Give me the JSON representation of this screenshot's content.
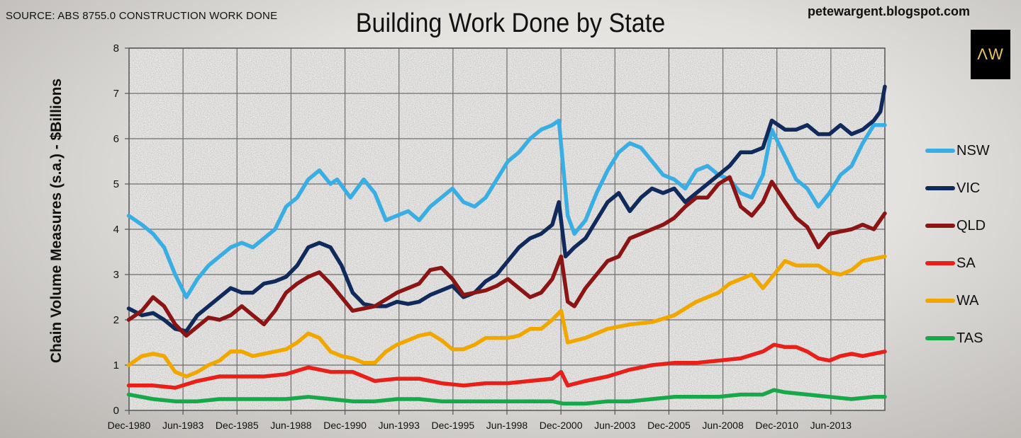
{
  "header": {
    "source": "SOURCE: ABS 8755.0 CONSTRUCTION WORK DONE",
    "title": "Building Work Done by State",
    "blog": "petewargent.blogspot.com",
    "logo_text": "ΛW"
  },
  "chart_data": {
    "type": "line",
    "title": "Building Work Done by State",
    "xlabel": "",
    "ylabel": "Chain Volume Measures (s.a.) - $Billions",
    "ylim": [
      0,
      8
    ],
    "yticks": [
      "0",
      "1",
      "2",
      "3",
      "4",
      "5",
      "6",
      "7",
      "8"
    ],
    "xticks": [
      "Dec-1980",
      "Jun-1983",
      "Dec-1985",
      "Jun-1988",
      "Dec-1990",
      "Jun-1993",
      "Dec-1995",
      "Jun-1998",
      "Dec-2000",
      "Jun-2003",
      "Dec-2005",
      "Jun-2008",
      "Dec-2010",
      "Jun-2013"
    ],
    "x_range": [
      1980.917,
      2015.0
    ],
    "grid": true,
    "legend_position": "right",
    "series": [
      {
        "name": "NSW",
        "color": "#3aaee2",
        "x": [
          1980.9,
          1981.5,
          1982.0,
          1982.5,
          1983.0,
          1983.5,
          1984.0,
          1984.5,
          1985.0,
          1985.5,
          1986.0,
          1986.5,
          1987.0,
          1987.5,
          1988.0,
          1988.5,
          1989.0,
          1989.5,
          1990.0,
          1990.3,
          1990.9,
          1991.5,
          1992.0,
          1992.5,
          1993.0,
          1993.5,
          1994.0,
          1994.5,
          1995.0,
          1995.5,
          1996.0,
          1996.5,
          1997.0,
          1997.5,
          1998.0,
          1998.5,
          1999.0,
          1999.5,
          2000.0,
          2000.3,
          2000.7,
          2001.0,
          2001.5,
          2002.0,
          2002.5,
          2003.0,
          2003.5,
          2004.0,
          2004.5,
          2005.0,
          2005.5,
          2006.0,
          2006.5,
          2007.0,
          2007.5,
          2008.0,
          2008.5,
          2009.0,
          2009.5,
          2009.9,
          2010.5,
          2011.0,
          2011.5,
          2012.0,
          2012.5,
          2013.0,
          2013.5,
          2014.0,
          2014.5,
          2015.0
        ],
        "values": [
          4.3,
          4.1,
          3.9,
          3.6,
          3.0,
          2.5,
          2.9,
          3.2,
          3.4,
          3.6,
          3.7,
          3.6,
          3.8,
          4.0,
          4.5,
          4.7,
          5.1,
          5.3,
          5.0,
          5.1,
          4.7,
          5.1,
          4.8,
          4.2,
          4.3,
          4.4,
          4.2,
          4.5,
          4.7,
          4.9,
          4.6,
          4.5,
          4.7,
          5.1,
          5.5,
          5.7,
          6.0,
          6.2,
          6.3,
          6.4,
          4.3,
          3.9,
          4.2,
          4.8,
          5.3,
          5.7,
          5.9,
          5.8,
          5.5,
          5.2,
          5.1,
          4.9,
          5.3,
          5.4,
          5.2,
          5.1,
          4.8,
          4.7,
          5.2,
          6.2,
          5.6,
          5.1,
          4.9,
          4.5,
          4.8,
          5.2,
          5.4,
          5.9,
          6.3,
          6.3
        ]
      },
      {
        "name": "VIC",
        "color": "#102a5c",
        "x": [
          1980.9,
          1981.5,
          1982.0,
          1982.5,
          1983.0,
          1983.5,
          1984.0,
          1984.5,
          1985.0,
          1985.5,
          1986.0,
          1986.5,
          1987.0,
          1987.5,
          1988.0,
          1988.5,
          1989.0,
          1989.5,
          1990.0,
          1990.5,
          1991.0,
          1991.5,
          1992.0,
          1992.5,
          1993.0,
          1993.5,
          1994.0,
          1994.5,
          1995.0,
          1995.5,
          1996.0,
          1996.5,
          1997.0,
          1997.5,
          1998.0,
          1998.5,
          1999.0,
          1999.5,
          2000.0,
          2000.3,
          2000.6,
          2001.0,
          2001.5,
          2002.0,
          2002.5,
          2003.0,
          2003.5,
          2004.0,
          2004.5,
          2005.0,
          2005.5,
          2006.0,
          2006.5,
          2007.0,
          2007.5,
          2008.0,
          2008.5,
          2009.0,
          2009.5,
          2009.9,
          2010.5,
          2011.0,
          2011.5,
          2012.0,
          2012.5,
          2013.0,
          2013.5,
          2014.0,
          2014.5,
          2014.8,
          2015.0
        ],
        "values": [
          2.25,
          2.1,
          2.15,
          2.0,
          1.8,
          1.75,
          2.1,
          2.3,
          2.5,
          2.7,
          2.6,
          2.6,
          2.8,
          2.85,
          2.95,
          3.2,
          3.6,
          3.7,
          3.6,
          3.2,
          2.6,
          2.35,
          2.3,
          2.3,
          2.4,
          2.35,
          2.4,
          2.55,
          2.65,
          2.75,
          2.5,
          2.6,
          2.85,
          3.0,
          3.3,
          3.6,
          3.8,
          3.9,
          4.1,
          4.6,
          3.4,
          3.6,
          3.8,
          4.2,
          4.6,
          4.8,
          4.4,
          4.7,
          4.9,
          4.8,
          4.9,
          4.6,
          4.8,
          5.0,
          5.2,
          5.4,
          5.7,
          5.7,
          5.8,
          6.4,
          6.2,
          6.2,
          6.3,
          6.1,
          6.1,
          6.3,
          6.1,
          6.2,
          6.4,
          6.6,
          7.15
        ]
      },
      {
        "name": "QLD",
        "color": "#8b1414",
        "x": [
          1980.9,
          1981.5,
          1982.0,
          1982.5,
          1983.0,
          1983.5,
          1984.0,
          1984.5,
          1985.0,
          1985.5,
          1986.0,
          1986.5,
          1987.0,
          1987.5,
          1988.0,
          1988.5,
          1989.0,
          1989.5,
          1990.0,
          1990.5,
          1991.0,
          1991.5,
          1992.0,
          1992.5,
          1993.0,
          1993.5,
          1994.0,
          1994.5,
          1995.0,
          1995.5,
          1996.0,
          1996.5,
          1997.0,
          1997.5,
          1998.0,
          1998.5,
          1999.0,
          1999.5,
          2000.0,
          2000.4,
          2000.7,
          2001.0,
          2001.5,
          2002.0,
          2002.5,
          2003.0,
          2003.5,
          2004.0,
          2004.5,
          2005.0,
          2005.5,
          2006.0,
          2006.5,
          2007.0,
          2007.5,
          2008.0,
          2008.5,
          2009.0,
          2009.5,
          2009.9,
          2010.5,
          2011.0,
          2011.5,
          2012.0,
          2012.5,
          2013.0,
          2013.5,
          2014.0,
          2014.5,
          2015.0
        ],
        "values": [
          2.0,
          2.2,
          2.5,
          2.3,
          1.9,
          1.65,
          1.85,
          2.05,
          2.0,
          2.1,
          2.3,
          2.1,
          1.9,
          2.2,
          2.6,
          2.8,
          2.95,
          3.05,
          2.8,
          2.5,
          2.2,
          2.25,
          2.3,
          2.45,
          2.6,
          2.7,
          2.8,
          3.1,
          3.15,
          2.9,
          2.55,
          2.6,
          2.65,
          2.75,
          2.9,
          2.7,
          2.5,
          2.6,
          2.9,
          3.4,
          2.4,
          2.3,
          2.7,
          3.0,
          3.3,
          3.4,
          3.8,
          3.9,
          4.0,
          4.1,
          4.25,
          4.5,
          4.7,
          4.7,
          5.0,
          5.15,
          4.5,
          4.3,
          4.6,
          5.05,
          4.6,
          4.25,
          4.05,
          3.6,
          3.9,
          3.95,
          4.0,
          4.1,
          4.0,
          4.35
        ]
      },
      {
        "name": "SA",
        "color": "#e8201a",
        "x": [
          1980.9,
          1982.0,
          1983.0,
          1984.0,
          1985.0,
          1986.0,
          1987.0,
          1988.0,
          1989.0,
          1990.0,
          1991.0,
          1992.0,
          1993.0,
          1994.0,
          1995.0,
          1996.0,
          1997.0,
          1998.0,
          1999.0,
          2000.0,
          2000.4,
          2000.7,
          2001.5,
          2002.5,
          2003.5,
          2004.5,
          2005.5,
          2006.5,
          2007.5,
          2008.5,
          2009.5,
          2010.0,
          2010.5,
          2011.0,
          2011.5,
          2012.0,
          2012.5,
          2013.0,
          2013.5,
          2014.0,
          2014.5,
          2015.0
        ],
        "values": [
          0.55,
          0.55,
          0.5,
          0.65,
          0.75,
          0.75,
          0.75,
          0.8,
          0.95,
          0.85,
          0.85,
          0.65,
          0.7,
          0.7,
          0.6,
          0.55,
          0.6,
          0.6,
          0.65,
          0.7,
          0.85,
          0.55,
          0.65,
          0.75,
          0.9,
          1.0,
          1.05,
          1.05,
          1.1,
          1.15,
          1.3,
          1.45,
          1.4,
          1.4,
          1.3,
          1.15,
          1.1,
          1.2,
          1.25,
          1.2,
          1.25,
          1.3
        ]
      },
      {
        "name": "WA",
        "color": "#f0a800",
        "x": [
          1980.9,
          1981.5,
          1982.0,
          1982.5,
          1983.0,
          1983.5,
          1984.0,
          1984.5,
          1985.0,
          1985.5,
          1986.0,
          1986.5,
          1987.0,
          1987.5,
          1988.0,
          1988.5,
          1989.0,
          1989.5,
          1990.0,
          1990.5,
          1991.0,
          1991.5,
          1992.0,
          1992.5,
          1993.0,
          1993.5,
          1994.0,
          1994.5,
          1995.0,
          1995.5,
          1996.0,
          1996.5,
          1997.0,
          1997.5,
          1998.0,
          1998.5,
          1999.0,
          1999.5,
          2000.0,
          2000.4,
          2000.7,
          2001.5,
          2002.5,
          2003.5,
          2004.5,
          2005.5,
          2006.5,
          2007.5,
          2008.0,
          2008.5,
          2009.0,
          2009.5,
          2010.0,
          2010.5,
          2011.0,
          2011.5,
          2012.0,
          2012.5,
          2013.0,
          2013.5,
          2014.0,
          2014.5,
          2015.0
        ],
        "values": [
          1.0,
          1.2,
          1.25,
          1.2,
          0.85,
          0.75,
          0.85,
          1.0,
          1.1,
          1.3,
          1.3,
          1.2,
          1.25,
          1.3,
          1.35,
          1.5,
          1.7,
          1.6,
          1.3,
          1.2,
          1.15,
          1.05,
          1.05,
          1.3,
          1.45,
          1.55,
          1.65,
          1.7,
          1.55,
          1.35,
          1.35,
          1.45,
          1.6,
          1.6,
          1.6,
          1.65,
          1.8,
          1.8,
          2.0,
          2.2,
          1.5,
          1.6,
          1.8,
          1.9,
          1.95,
          2.1,
          2.4,
          2.6,
          2.8,
          2.9,
          3.0,
          2.7,
          3.0,
          3.3,
          3.2,
          3.2,
          3.2,
          3.05,
          3.0,
          3.1,
          3.3,
          3.35,
          3.4
        ]
      },
      {
        "name": "TAS",
        "color": "#18a84a",
        "x": [
          1980.9,
          1982.0,
          1983.0,
          1984.0,
          1985.0,
          1986.0,
          1987.0,
          1988.0,
          1989.0,
          1990.0,
          1991.0,
          1992.0,
          1993.0,
          1994.0,
          1995.0,
          1996.0,
          1997.0,
          1998.0,
          1999.0,
          2000.0,
          2000.5,
          2001.5,
          2002.5,
          2003.5,
          2004.5,
          2005.5,
          2006.5,
          2007.5,
          2008.5,
          2009.5,
          2010.0,
          2010.5,
          2011.5,
          2012.5,
          2013.5,
          2014.5,
          2015.0
        ],
        "values": [
          0.35,
          0.25,
          0.2,
          0.2,
          0.25,
          0.25,
          0.25,
          0.25,
          0.3,
          0.25,
          0.2,
          0.2,
          0.25,
          0.25,
          0.2,
          0.2,
          0.2,
          0.2,
          0.2,
          0.2,
          0.15,
          0.15,
          0.2,
          0.2,
          0.25,
          0.3,
          0.3,
          0.3,
          0.35,
          0.35,
          0.45,
          0.4,
          0.35,
          0.3,
          0.25,
          0.3,
          0.3
        ]
      }
    ]
  }
}
